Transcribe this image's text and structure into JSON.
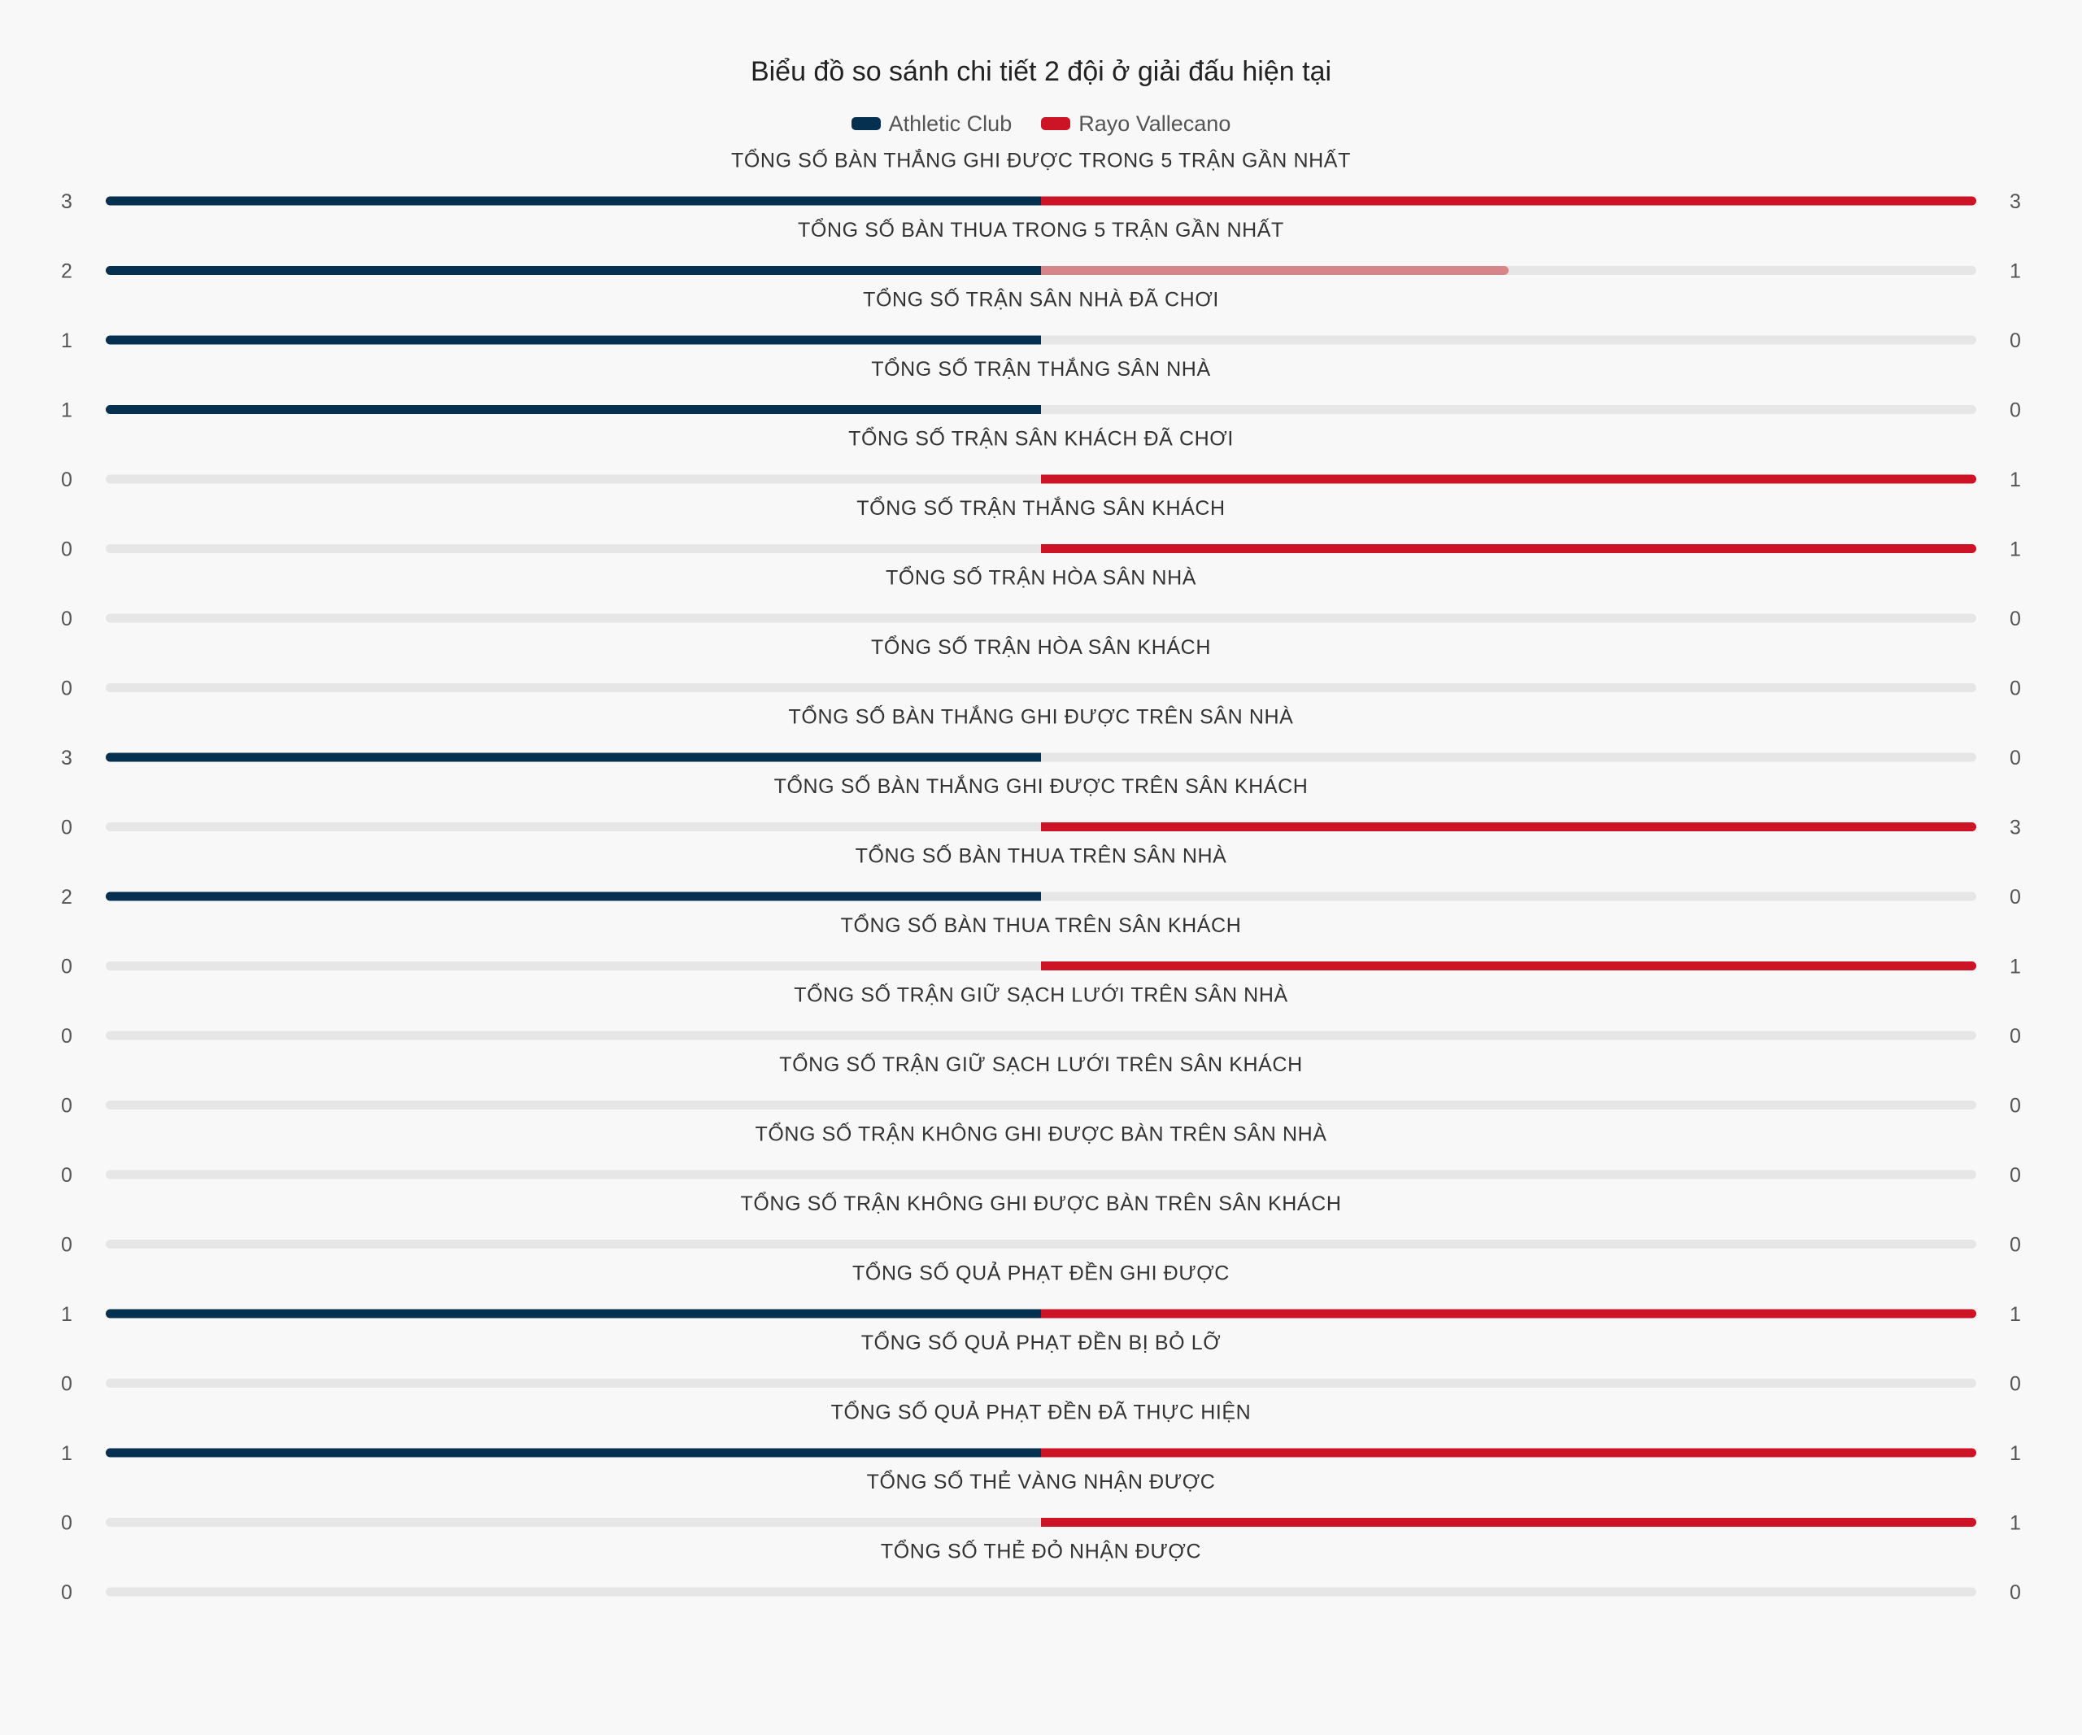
{
  "chart_data": {
    "type": "bar",
    "title": "Biểu đồ so sánh chi tiết 2 đội ở giải đấu hiện tại",
    "series": [
      {
        "name": "Athletic Club",
        "color": "#06304f",
        "values": [
          3,
          2,
          1,
          1,
          0,
          0,
          0,
          0,
          3,
          0,
          2,
          0,
          0,
          0,
          0,
          0,
          1,
          0,
          1,
          0,
          0
        ]
      },
      {
        "name": "Rayo Vallecano",
        "color": "#cc1426",
        "values": [
          3,
          1,
          0,
          0,
          1,
          1,
          0,
          0,
          0,
          3,
          0,
          1,
          0,
          0,
          0,
          0,
          1,
          0,
          1,
          1,
          0
        ]
      }
    ],
    "categories": [
      "TỔNG SỐ BÀN THẮNG GHI ĐƯỢC TRONG 5 TRẬN GẦN NHẤT",
      "TỔNG SỐ BÀN THUA TRONG 5 TRẬN GẦN NHẤT",
      "TỔNG SỐ TRẬN SÂN NHÀ ĐÃ CHƠI",
      "TỔNG SỐ TRẬN THẮNG SÂN NHÀ",
      "TỔNG SỐ TRẬN SÂN KHÁCH ĐÃ CHƠI",
      "TỔNG SỐ TRẬN THẮNG SÂN KHÁCH",
      "TỔNG SỐ TRẬN HÒA SÂN NHÀ",
      "TỔNG SỐ TRẬN HÒA SÂN KHÁCH",
      "TỔNG SỐ BÀN THẮNG GHI ĐƯỢC TRÊN SÂN NHÀ",
      "TỔNG SỐ BÀN THẮNG GHI ĐƯỢC TRÊN SÂN KHÁCH",
      "TỔNG SỐ BÀN THUA TRÊN SÂN NHÀ",
      "TỔNG SỐ BÀN THUA TRÊN SÂN KHÁCH",
      "TỔNG SỐ TRẬN GIỮ SẠCH LƯỚI TRÊN SÂN NHÀ",
      "TỔNG SỐ TRẬN GIỮ SẠCH LƯỚI TRÊN SÂN KHÁCH",
      "TỔNG SỐ TRẬN KHÔNG GHI ĐƯỢC BÀN TRÊN SÂN NHÀ",
      "TỔNG SỐ TRẬN KHÔNG GHI ĐƯỢC BÀN TRÊN SÂN KHÁCH",
      "TỔNG SỐ QUẢ PHẠT ĐỀN GHI ĐƯỢC",
      "TỔNG SỐ QUẢ PHẠT ĐỀN BỊ BỎ LỠ",
      "TỔNG SỐ QUẢ PHẠT ĐỀN ĐÃ THỰC HIỆN",
      "TỔNG SỐ THẺ VÀNG NHẬN ĐƯỢC",
      "TỔNG SỐ THẺ ĐỎ NHẬN ĐƯỢC"
    ],
    "legend_position": "top-center",
    "track_color": "#e6e6e6",
    "lighter_side_color": "#d6858a"
  }
}
